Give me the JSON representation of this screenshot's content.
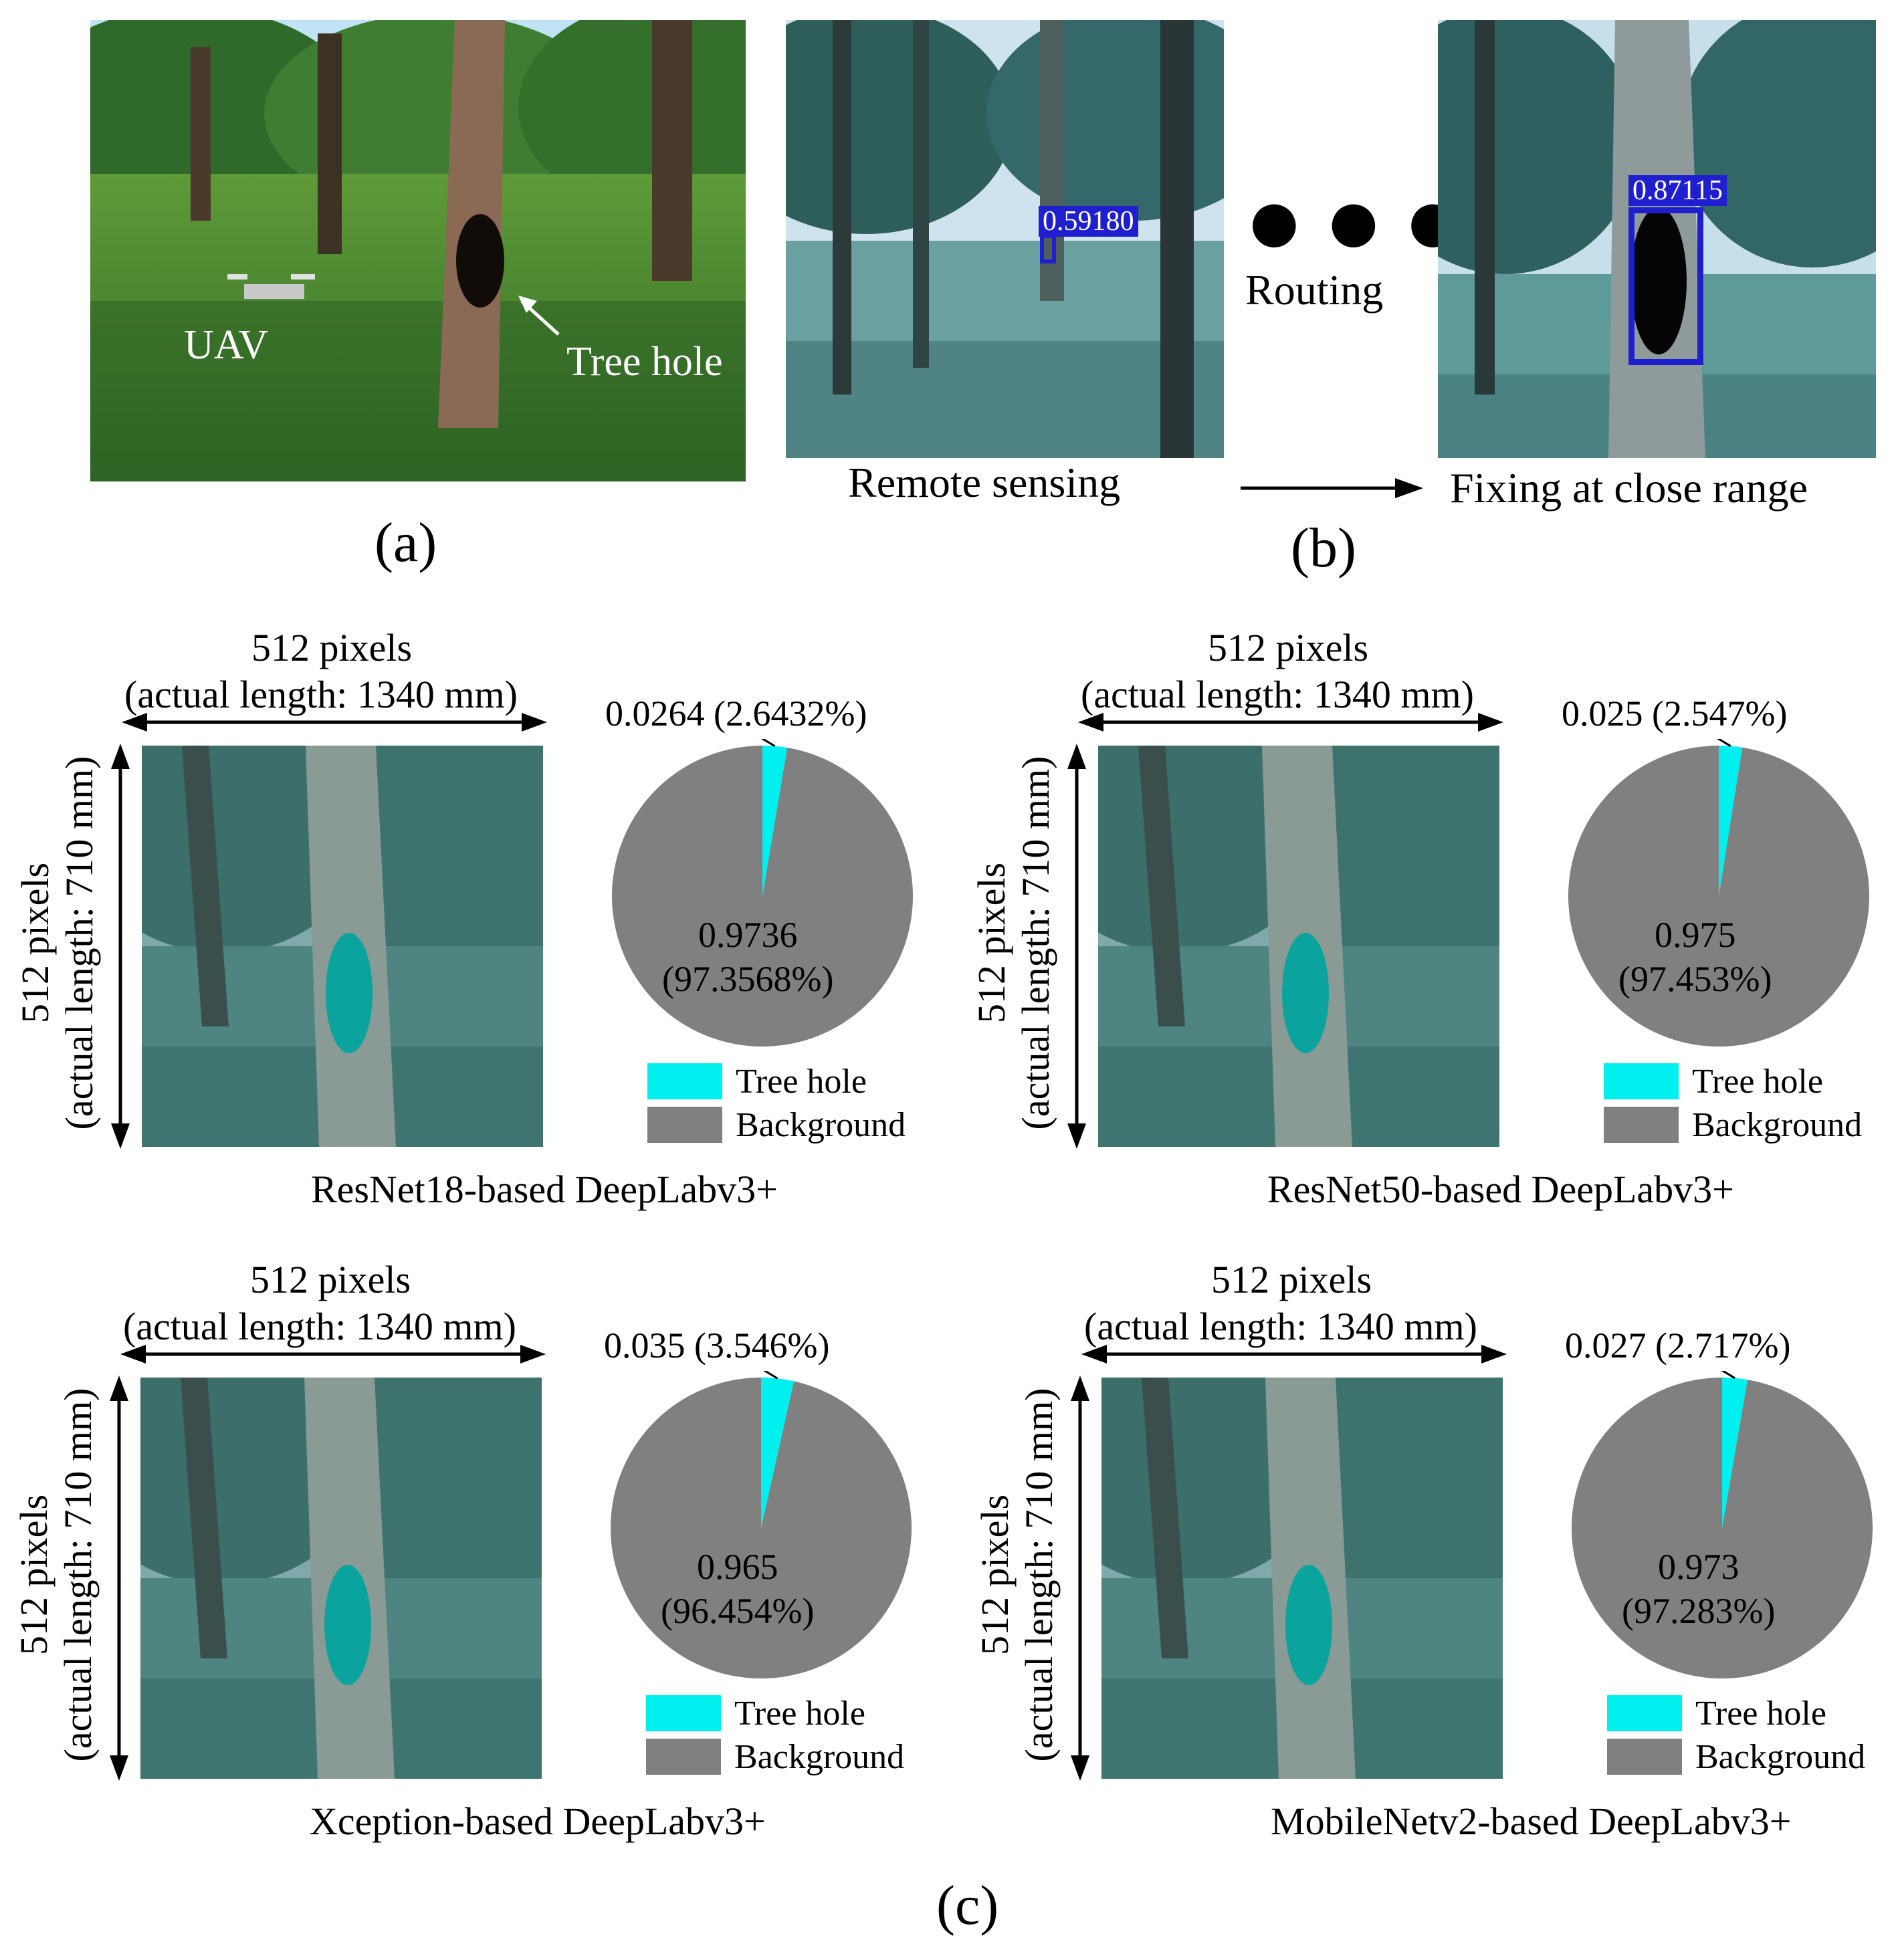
{
  "panel_a": {
    "label": "(a)",
    "uav_label": "UAV",
    "tree_hole_label": "Tree hole"
  },
  "panel_b": {
    "label": "(b)",
    "routing": "Routing",
    "remote_sensing": "Remote sensing",
    "fixing": "Fixing at close range",
    "score_far": "0.59180",
    "score_near": "0.87115"
  },
  "panel_c": {
    "label": "(c)",
    "width_label_line1": "512 pixels",
    "width_label_line2": "(actual length: 1340 mm)",
    "height_label_line1": "512 pixels",
    "height_label_line2": "(actual length: 710 mm)",
    "legend_tree_hole": "Tree hole",
    "legend_background": "Background",
    "colors": {
      "tree_hole": "#00f0f0",
      "background": "#808080"
    },
    "models": [
      {
        "caption": "ResNet18-based DeepLabv3+",
        "hole_text": "0.0264 (2.6432%)",
        "bg_value": "0.9736",
        "bg_pct": "(97.3568%)"
      },
      {
        "caption": "ResNet50-based DeepLabv3+",
        "hole_text": "0.025 (2.547%)",
        "bg_value": "0.975",
        "bg_pct": "(97.453%)"
      },
      {
        "caption": "Xception-based DeepLabv3+",
        "hole_text": "0.035 (3.546%)",
        "bg_value": "0.965",
        "bg_pct": "(96.454%)"
      },
      {
        "caption": "MobileNetv2-based DeepLabv3+",
        "hole_text": "0.027 (2.717%)",
        "bg_value": "0.973",
        "bg_pct": "(97.283%)"
      }
    ]
  },
  "chart_data": [
    {
      "type": "pie",
      "categories": [
        "Tree hole",
        "Background"
      ],
      "values": [
        0.0264,
        0.9736
      ],
      "labels": [
        "0.0264 (2.6432%)",
        "0.9736 (97.3568%)"
      ],
      "colors": [
        "#00f0f0",
        "#808080"
      ]
    },
    {
      "type": "pie",
      "categories": [
        "Tree hole",
        "Background"
      ],
      "values": [
        0.025,
        0.975
      ],
      "labels": [
        "0.025 (2.547%)",
        "0.975 (97.453%)"
      ],
      "colors": [
        "#00f0f0",
        "#808080"
      ]
    },
    {
      "type": "pie",
      "categories": [
        "Tree hole",
        "Background"
      ],
      "values": [
        0.035,
        0.965
      ],
      "labels": [
        "0.035 (3.546%)",
        "0.965 (96.454%)"
      ],
      "colors": [
        "#00f0f0",
        "#808080"
      ]
    },
    {
      "type": "pie",
      "categories": [
        "Tree hole",
        "Background"
      ],
      "values": [
        0.027,
        0.973
      ],
      "labels": [
        "0.027 (2.717%)",
        "0.973 (97.283%)"
      ],
      "colors": [
        "#00f0f0",
        "#808080"
      ]
    }
  ]
}
